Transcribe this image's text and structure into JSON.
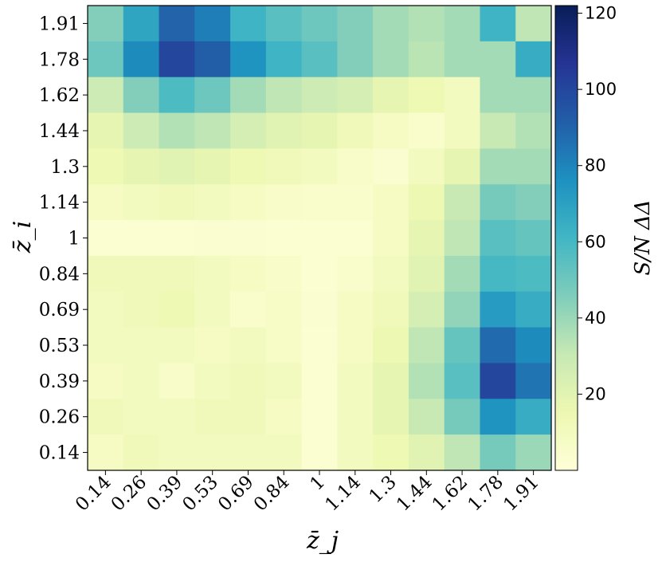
{
  "chart_data": {
    "type": "heatmap",
    "title": "",
    "xlabel": "z̄_j",
    "ylabel": "z̄_i",
    "x_categories": [
      "0.14",
      "0.26",
      "0.39",
      "0.53",
      "0.69",
      "0.84",
      "1",
      "1.14",
      "1.3",
      "1.44",
      "1.62",
      "1.78",
      "1.91"
    ],
    "y_categories": [
      "1.91",
      "1.78",
      "1.62",
      "1.44",
      "1.3",
      "1.14",
      "1",
      "0.84",
      "0.69",
      "0.53",
      "0.39",
      "0.26",
      "0.14"
    ],
    "values": [
      [
        45,
        68,
        90,
        82,
        62,
        55,
        50,
        45,
        38,
        35,
        38,
        62,
        32
      ],
      [
        50,
        78,
        100,
        92,
        75,
        62,
        55,
        45,
        38,
        33,
        38,
        38,
        65
      ],
      [
        28,
        45,
        58,
        50,
        38,
        32,
        28,
        25,
        18,
        14,
        10,
        38,
        38
      ],
      [
        18,
        28,
        35,
        32,
        25,
        20,
        18,
        12,
        8,
        5,
        10,
        30,
        35
      ],
      [
        14,
        18,
        20,
        18,
        14,
        12,
        10,
        6,
        4,
        10,
        18,
        38,
        38
      ],
      [
        8,
        10,
        12,
        10,
        8,
        6,
        5,
        5,
        8,
        15,
        30,
        48,
        45
      ],
      [
        3,
        3,
        3,
        4,
        4,
        3,
        3,
        3,
        8,
        18,
        32,
        55,
        52
      ],
      [
        12,
        12,
        12,
        10,
        8,
        6,
        3,
        5,
        10,
        20,
        38,
        60,
        58
      ],
      [
        10,
        12,
        14,
        10,
        5,
        7,
        4,
        8,
        12,
        25,
        42,
        72,
        65
      ],
      [
        10,
        10,
        10,
        8,
        10,
        7,
        3,
        8,
        15,
        32,
        52,
        88,
        78
      ],
      [
        8,
        10,
        6,
        10,
        12,
        10,
        3,
        10,
        18,
        35,
        55,
        100,
        85
      ],
      [
        12,
        10,
        10,
        12,
        12,
        8,
        3,
        10,
        18,
        30,
        48,
        75,
        65
      ],
      [
        8,
        12,
        10,
        10,
        10,
        10,
        3,
        10,
        14,
        20,
        32,
        48,
        40
      ]
    ],
    "colormap": "YlGnBu",
    "vmin": 0,
    "vmax": 122,
    "colorbar": {
      "label": "S/N ΔΔ",
      "ticks": [
        "20",
        "40",
        "60",
        "80",
        "100",
        "120"
      ],
      "tick_values": [
        20,
        40,
        60,
        80,
        100,
        120
      ]
    },
    "grid": false,
    "legend": "none"
  }
}
